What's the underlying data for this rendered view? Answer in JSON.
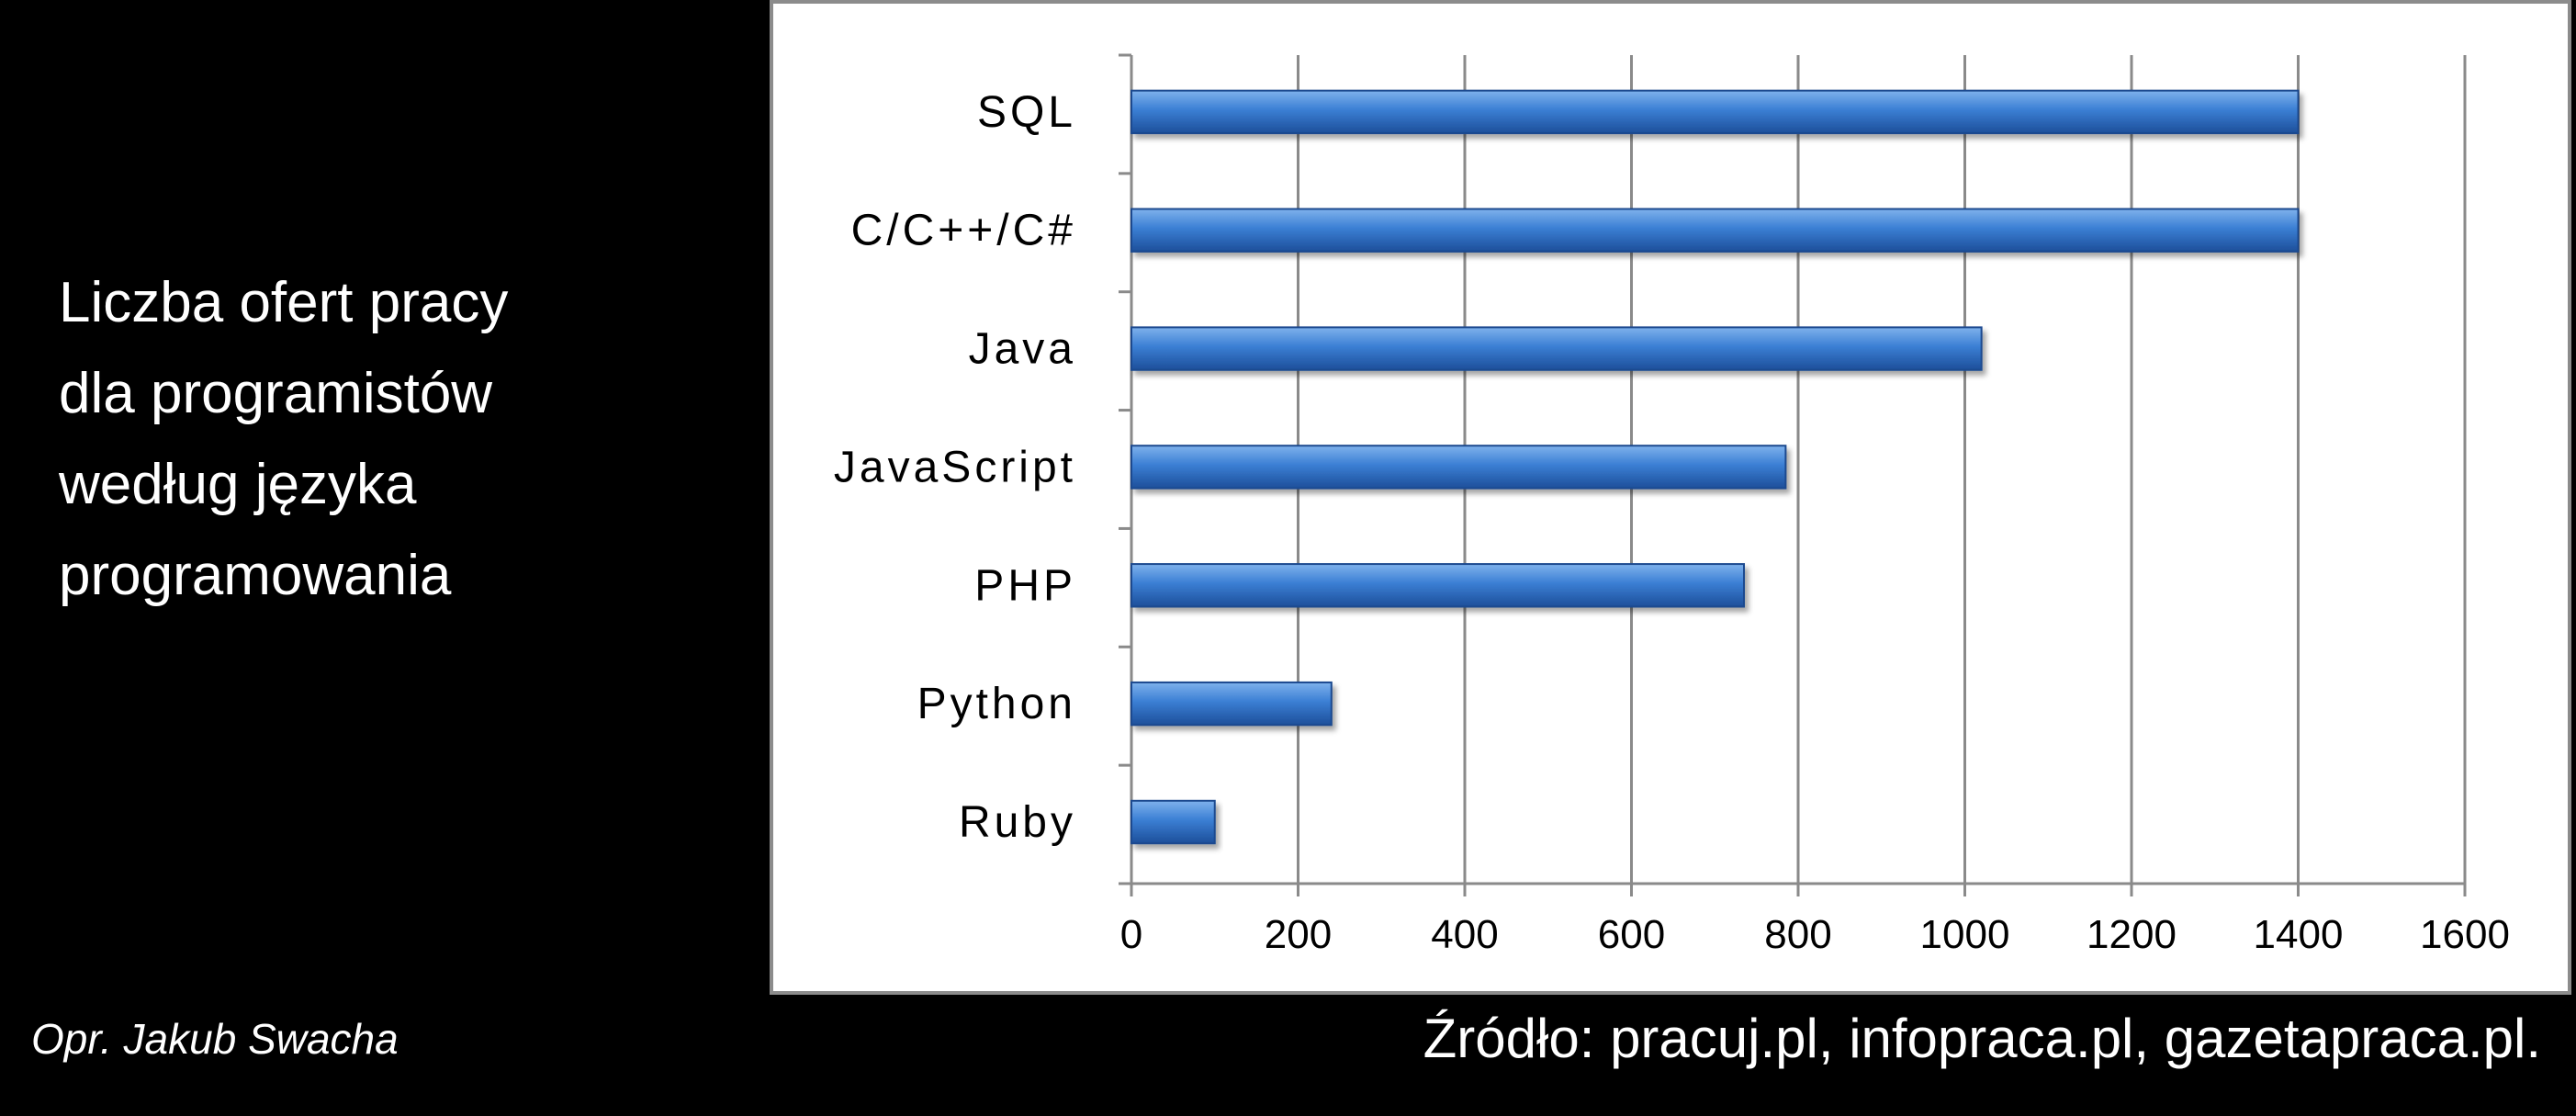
{
  "title_lines": [
    "Liczba ofert pracy",
    "dla programistów",
    "według języka",
    "programowania"
  ],
  "author": "Opr. Jakub Swacha",
  "source": "Źródło: pracuj.pl, infopraca.pl,  gazetapraca.pl.",
  "colors": {
    "background": "#000000",
    "bar_top": "#7fb2ec",
    "bar_mid": "#3b7fd4",
    "bar_bottom": "#1d4f9a",
    "grid": "#8a8a8a"
  },
  "chart_data": {
    "type": "bar",
    "orientation": "horizontal",
    "categories": [
      "SQL",
      "C/C++/C#",
      "Java",
      "JavaScript",
      "PHP",
      "Python",
      "Ruby"
    ],
    "values": [
      1400,
      1400,
      1020,
      785,
      735,
      240,
      100
    ],
    "xlim": [
      0,
      1600
    ],
    "xticks": [
      "0",
      "200",
      "400",
      "600",
      "800",
      "1000",
      "1200",
      "1400",
      "1600"
    ],
    "grid": "vertical",
    "legend": "none"
  }
}
